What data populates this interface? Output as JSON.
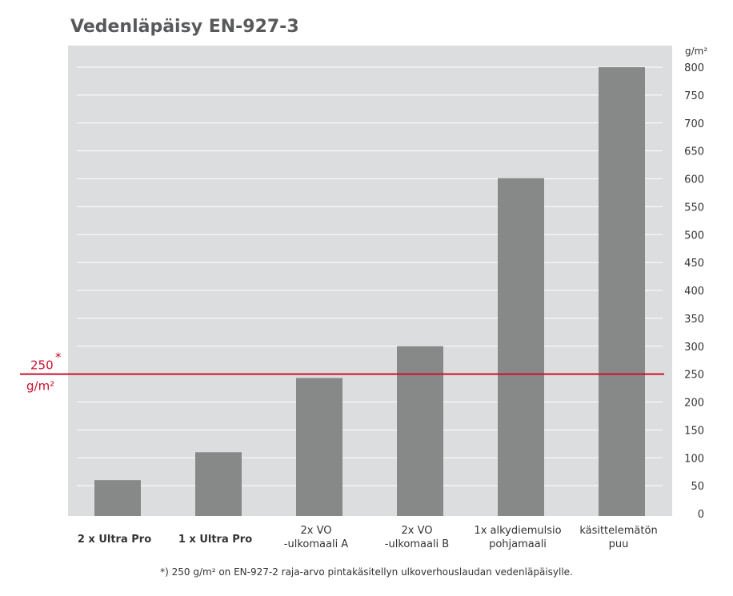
{
  "colors": {
    "plot_background": "#dcddde",
    "bar": "#878888",
    "gridline": "#ffffff",
    "reference_line": "#c8102e",
    "text": "#333333",
    "title": "#58595b"
  },
  "chart_data": {
    "type": "bar",
    "title": "Vedenläpäisy EN-927-3",
    "categories": [
      [
        "2 x Ultra Pro"
      ],
      [
        "1 x Ultra Pro"
      ],
      [
        "2x VO",
        "-ulkomaali A"
      ],
      [
        "2x VO",
        "-ulkomaali B"
      ],
      [
        "1x alkydiemulsio",
        "pohjamaali"
      ],
      [
        "käsittelemätön",
        "puu"
      ]
    ],
    "values": [
      60,
      110,
      243,
      300,
      601,
      800
    ],
    "y_unit": "g/m²",
    "ylim": [
      0,
      800
    ],
    "y_ticks": [
      0,
      50,
      100,
      150,
      200,
      250,
      300,
      350,
      400,
      450,
      500,
      550,
      600,
      650,
      700,
      750,
      800
    ],
    "y_axis_position": "right",
    "grid": true,
    "reference_line": {
      "value": 250,
      "label_value": "250",
      "label_marker": "*",
      "label_unit": "g/m²"
    },
    "footnote": "*) 250 g/m² on EN-927-2 raja-arvo pintakäsitellyn ulkoverhouslaudan vedenläpäisylle."
  }
}
